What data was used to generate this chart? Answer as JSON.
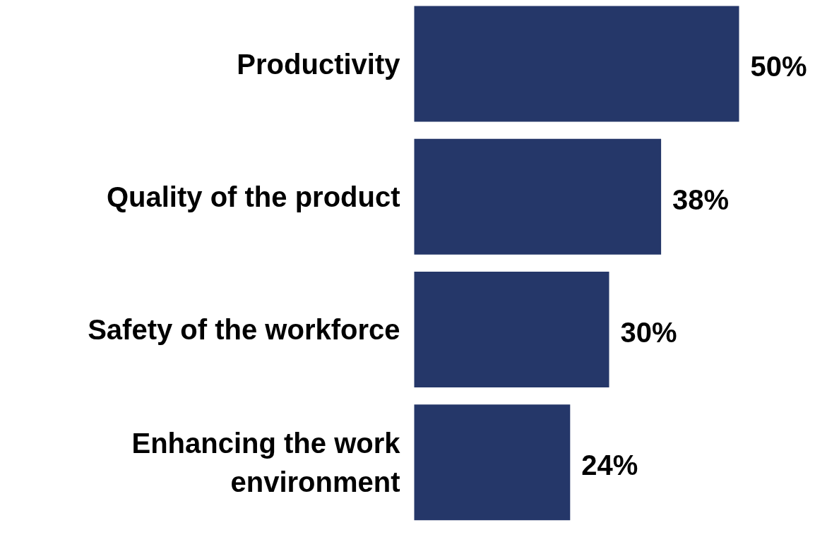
{
  "chart_data": {
    "type": "bar",
    "orientation": "horizontal",
    "categories": [
      "Productivity",
      "Quality of the product",
      "Safety of the workforce",
      "Enhancing the work\nenvironment"
    ],
    "values": [
      50,
      38,
      30,
      24
    ],
    "value_labels": [
      "50%",
      "38%",
      "30%",
      "24%"
    ],
    "color": "#253769"
  }
}
